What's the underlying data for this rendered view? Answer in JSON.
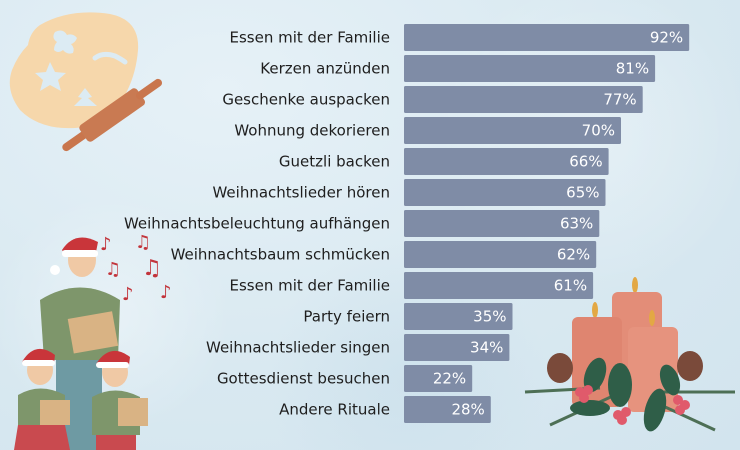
{
  "chart_data": {
    "type": "bar",
    "orientation": "horizontal",
    "title": "",
    "xlabel": "",
    "ylabel": "",
    "xlim": [
      0,
      100
    ],
    "grid": false,
    "legend": "none",
    "value_suffix": "%",
    "bar_color": "#7f8ca6",
    "categories": [
      "Essen mit der Familie",
      "Kerzen anzünden",
      "Geschenke auspacken",
      "Wohnung dekorieren",
      "Guetzli backen",
      "Weihnachtslieder hören",
      "Weihnachtsbeleuchtung aufhängen",
      "Weihnachtsbaum schmücken",
      "Essen mit der Familie",
      "Party feiern",
      "Weihnachtslieder singen",
      "Gottesdienst besuchen",
      "Andere Rituale"
    ],
    "values": [
      92,
      81,
      77,
      70,
      66,
      65,
      63,
      62,
      61,
      35,
      34,
      22,
      28
    ],
    "value_labels": [
      "92%",
      "81%",
      "77%",
      "70%",
      "66%",
      "65%",
      "63%",
      "62%",
      "61%",
      "35%",
      "34%",
      "22%",
      "28%"
    ]
  },
  "decorations": {
    "top_left": "cookie-dough-rolling-pin-illustration",
    "bottom_left": "carol-singers-illustration",
    "bottom_right": "advent-candles-illustration"
  }
}
